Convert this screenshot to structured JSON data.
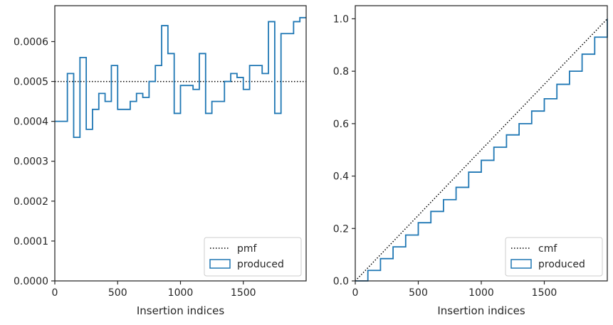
{
  "chart_data": [
    {
      "type": "line",
      "xlabel": "Insertion indices",
      "ylabel": "",
      "xlim": [
        0,
        2000
      ],
      "ylim": [
        0,
        0.00069
      ],
      "xticks": [
        0,
        500,
        1000,
        1500
      ],
      "xtick_labels": [
        "0",
        "500",
        "1000",
        "1500"
      ],
      "yticks": [
        0,
        0.0001,
        0.0002,
        0.0003,
        0.0004,
        0.0005,
        0.0006
      ],
      "ytick_labels": [
        "0.0000",
        "0.0001",
        "0.0002",
        "0.0003",
        "0.0004",
        "0.0005",
        "0.0006"
      ],
      "grid": false,
      "legend_position": "lower-right",
      "series": [
        {
          "name": "pmf",
          "style": "dotted",
          "color": "#000000",
          "x": [
            0,
            2000
          ],
          "y": [
            0.0005,
            0.0005
          ]
        },
        {
          "name": "produced",
          "style": "step",
          "color": "#1f77b4",
          "bin_edges": [
            0,
            100,
            150,
            200,
            250,
            300,
            350,
            400,
            450,
            500,
            550,
            600,
            650,
            700,
            750,
            800,
            850,
            900,
            950,
            1000,
            1050,
            1100,
            1150,
            1200,
            1250,
            1300,
            1350,
            1400,
            1450,
            1500,
            1550,
            1600,
            1650,
            1700,
            1750,
            1800,
            1850,
            1900,
            1950,
            2000
          ],
          "values": [
            0.0004,
            0.00052,
            0.00036,
            0.00056,
            0.00038,
            0.00043,
            0.00047,
            0.00045,
            0.00054,
            0.00043,
            0.00043,
            0.00045,
            0.00047,
            0.00046,
            0.0005,
            0.00054,
            0.00064,
            0.00057,
            0.00042,
            0.00049,
            0.00049,
            0.00048,
            0.00057,
            0.00042,
            0.00045,
            0.00045,
            0.0005,
            0.00052,
            0.00051,
            0.00048,
            0.00054,
            0.00054,
            0.00052,
            0.00065,
            0.00042,
            0.00062,
            0.00062,
            0.00065,
            0.00066
          ]
        }
      ]
    },
    {
      "type": "line",
      "xlabel": "Insertion indices",
      "ylabel": "",
      "xlim": [
        0,
        2000
      ],
      "ylim": [
        0,
        1.05
      ],
      "xticks": [
        0,
        500,
        1000,
        1500
      ],
      "xtick_labels": [
        "0",
        "500",
        "1000",
        "1500"
      ],
      "yticks": [
        0,
        0.2,
        0.4,
        0.6,
        0.8,
        1.0
      ],
      "ytick_labels": [
        "0.0",
        "0.2",
        "0.4",
        "0.6",
        "0.8",
        "1.0"
      ],
      "grid": false,
      "legend_position": "lower-right",
      "series": [
        {
          "name": "cmf",
          "style": "dotted",
          "color": "#000000",
          "x": [
            0,
            2000
          ],
          "y": [
            0,
            1.0
          ]
        },
        {
          "name": "produced",
          "style": "step",
          "color": "#1f77b4",
          "x": [
            0,
            100,
            200,
            300,
            400,
            500,
            600,
            700,
            800,
            900,
            1000,
            1100,
            1200,
            1300,
            1400,
            1500,
            1600,
            1700,
            1800,
            1900,
            2000
          ],
          "y": [
            0,
            0.04,
            0.085,
            0.13,
            0.175,
            0.222,
            0.265,
            0.31,
            0.357,
            0.415,
            0.46,
            0.51,
            0.557,
            0.6,
            0.648,
            0.695,
            0.75,
            0.8,
            0.865,
            0.93,
            1.0
          ]
        }
      ]
    }
  ]
}
